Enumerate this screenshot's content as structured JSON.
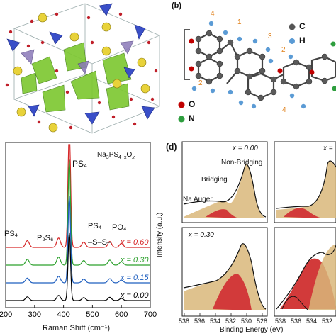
{
  "panels": {
    "b": {
      "label": "(b)",
      "legend": [
        {
          "sym": "C",
          "color": "#555555"
        },
        {
          "sym": "H",
          "color": "#5b9bd5"
        },
        {
          "sym": "O",
          "color": "#c00000"
        },
        {
          "sym": "N",
          "color": "#2e9e3e"
        }
      ],
      "atom_numbers": [
        "4",
        "1",
        "3",
        "2",
        "2",
        "4"
      ]
    },
    "c": {
      "formula_main": "Na",
      "formula_sub1": "3",
      "formula_mid": "PS",
      "formula_sub2": "4−x",
      "formula_o": "O",
      "formula_sub3": "x",
      "peak_labels": [
        "PS₄",
        "PS₄",
        "P₂S₆",
        "–S–S–",
        "PS₄",
        "PO₄"
      ],
      "x_label": "Raman Shift (cm⁻¹)"
    },
    "d": {
      "label": "(d)",
      "y_label": "Intensity (a.u.)",
      "x_label": "Binding Energy (eV)",
      "subplots": [
        {
          "x_value": "x = 0.00"
        },
        {
          "x_value": "x = 0.30"
        }
      ],
      "right_partial": [
        "x ="
      ],
      "annotations": [
        "Non-Bridging",
        "Bridging",
        "Na Auger"
      ],
      "x_ticks": [
        "538",
        "536",
        "534",
        "532",
        "530",
        "528"
      ],
      "x_ticks_partial": [
        "538",
        "536",
        "534",
        "532"
      ]
    }
  },
  "chart_data": {
    "type": "line",
    "xlim": [
      200,
      700
    ],
    "x_ticks": [
      200,
      300,
      400,
      500,
      600,
      700
    ],
    "series": [
      {
        "name": "x = 0.60",
        "color": "#d62728",
        "offset": 3
      },
      {
        "name": "x = 0.30",
        "color": "#2ca02c",
        "offset": 2
      },
      {
        "name": "x = 0.15",
        "color": "#1f5fbf",
        "offset": 1
      },
      {
        "name": "x = 0.00",
        "color": "#000000",
        "offset": 0
      }
    ],
    "peaks": [
      {
        "x": 275,
        "h": 0.25
      },
      {
        "x": 383,
        "h": 0.35
      },
      {
        "x": 420,
        "h": 4.6
      },
      {
        "x": 470,
        "h": 0.2
      },
      {
        "x": 560,
        "h": 0.22
      },
      {
        "x": 600,
        "h": 0.15
      }
    ]
  }
}
